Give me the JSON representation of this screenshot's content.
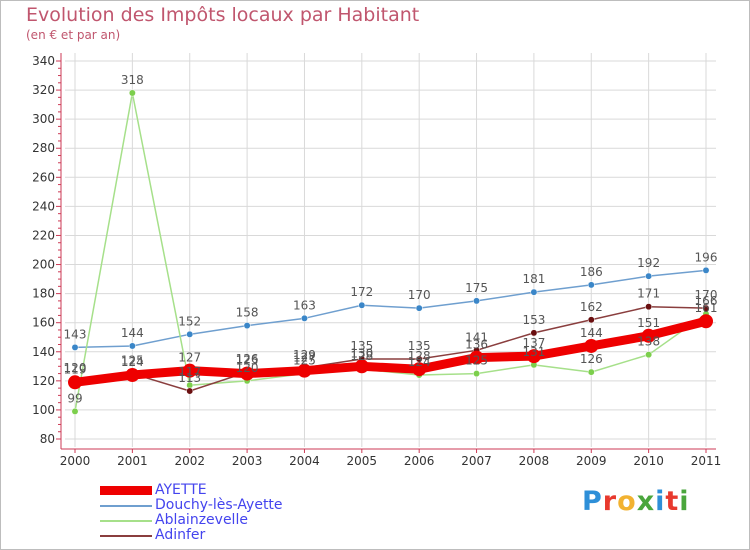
{
  "title": "Evolution des Impôts locaux par Habitant",
  "subtitle": "(en € et par an)",
  "logo_text": "Proxiti",
  "logo_colors": [
    "#2e8fd8",
    "#e8392e",
    "#f2b230",
    "#4aa63c",
    "#2e8fd8",
    "#e8392e",
    "#4aa63c"
  ],
  "chart_data": {
    "type": "line",
    "title": "Evolution des Impôts locaux par Habitant",
    "subtitle": "(en € et par an)",
    "xlabel": "",
    "ylabel": "",
    "ylim": [
      80,
      340
    ],
    "y_ticks": [
      80,
      100,
      120,
      140,
      160,
      180,
      200,
      220,
      240,
      260,
      280,
      300,
      320,
      340
    ],
    "categories": [
      "2000",
      "2001",
      "2002",
      "2003",
      "2004",
      "2005",
      "2006",
      "2007",
      "2008",
      "2009",
      "2010",
      "2011"
    ],
    "grid": true,
    "legend_position": "bottom-left",
    "series": [
      {
        "name": "Douchy-lès-Ayette",
        "color": "#6f9fcf",
        "marker": "#3a86c8",
        "values": [
          143,
          144,
          152,
          158,
          163,
          172,
          170,
          175,
          181,
          186,
          192,
          196
        ]
      },
      {
        "name": "Ablainzevelle",
        "color": "#a6e08a",
        "marker": "#7ccf4c",
        "values": [
          99,
          318,
          117,
          120,
          125,
          128,
          124,
          125,
          131,
          126,
          138,
          166
        ]
      },
      {
        "name": "Adinfer",
        "color": "#8a3e3e",
        "marker": "#6a0f10",
        "values": [
          120,
          125,
          113,
          126,
          129,
          135,
          135,
          141,
          153,
          162,
          171,
          170
        ]
      },
      {
        "name": "AYETTE",
        "color": "#ee0000",
        "marker": "#ee0000",
        "values": [
          119,
          124,
          127,
          125,
          127,
          130,
          128,
          136,
          137,
          144,
          151,
          161
        ]
      }
    ],
    "point_labels": {
      "Douchy-lès-Ayette": [
        "143",
        "144",
        "152",
        "158",
        "163",
        "172",
        "170",
        "175",
        "181",
        "186",
        "192",
        "196"
      ],
      "Ablainzevelle": [
        "99",
        "318",
        "117",
        "120",
        "125",
        "128",
        "124",
        "125",
        "131",
        "126",
        "138",
        "166"
      ],
      "Adinfer": [
        "120",
        "125",
        "113",
        "126",
        "129",
        "135",
        "135",
        "141",
        "153",
        "162",
        "171",
        "170"
      ],
      "AYETTE": [
        "119",
        "124",
        "127",
        "125",
        "127",
        "130",
        "128",
        "136",
        "137",
        "144",
        "151",
        "161"
      ]
    },
    "legend": [
      {
        "name": "AYETTE",
        "color": "#ee0000"
      },
      {
        "name": "Douchy-lès-Ayette",
        "color": "#6f9fcf"
      },
      {
        "name": "Ablainzevelle",
        "color": "#a6e08a"
      },
      {
        "name": "Adinfer",
        "color": "#8a3e3e"
      }
    ]
  }
}
